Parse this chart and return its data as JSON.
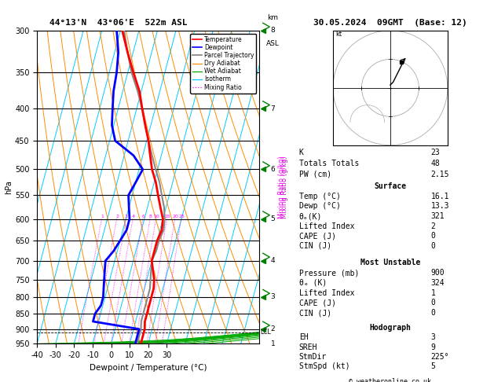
{
  "title_left": "44°13'N  43°06'E  522m ASL",
  "title_right": "30.05.2024  09GMT  (Base: 12)",
  "xlabel": "Dewpoint / Temperature (°C)",
  "ylabel_left": "hPa",
  "pressure_levels": [
    300,
    350,
    400,
    450,
    500,
    550,
    600,
    650,
    700,
    750,
    800,
    850,
    900,
    950
  ],
  "pressure_min": 300,
  "pressure_max": 950,
  "temp_min": -40,
  "temp_max": 35,
  "temp_profile": {
    "pressure": [
      300,
      325,
      350,
      375,
      400,
      425,
      450,
      475,
      500,
      525,
      550,
      575,
      600,
      625,
      650,
      675,
      700,
      725,
      750,
      775,
      800,
      825,
      850,
      875,
      900,
      925,
      950
    ],
    "temp": [
      -39,
      -33,
      -27,
      -21,
      -17,
      -13,
      -9,
      -6,
      -3,
      1,
      4,
      7,
      10,
      11,
      10,
      10,
      10,
      12,
      14,
      15,
      15,
      15,
      15,
      15,
      16,
      16,
      16
    ]
  },
  "dewp_profile": {
    "pressure": [
      300,
      325,
      350,
      375,
      400,
      425,
      450,
      475,
      500,
      525,
      550,
      575,
      600,
      625,
      650,
      675,
      700,
      725,
      750,
      775,
      800,
      825,
      850,
      875,
      900,
      925,
      950
    ],
    "dewp": [
      -42,
      -38,
      -36,
      -35,
      -33,
      -31,
      -27,
      -15,
      -8,
      -10,
      -12,
      -10,
      -8,
      -8,
      -10,
      -12,
      -15,
      -14,
      -13,
      -12,
      -11,
      -11,
      -13,
      -13,
      13,
      13,
      13
    ]
  },
  "parcel_profile": {
    "pressure": [
      300,
      325,
      350,
      375,
      400,
      425,
      450,
      475,
      500,
      525,
      550,
      575,
      600,
      625,
      650,
      675,
      700,
      725,
      750,
      775,
      800,
      825,
      850,
      875,
      900,
      925,
      950
    ],
    "temp": [
      -38,
      -33,
      -28,
      -22,
      -17,
      -13,
      -9,
      -5,
      -1,
      3,
      6,
      9,
      11,
      12,
      11,
      11,
      10,
      11,
      12,
      13,
      13,
      13,
      13,
      13,
      14,
      14,
      14
    ]
  },
  "colors": {
    "temperature": "#ff0000",
    "dewpoint": "#0000ff",
    "parcel": "#888888",
    "dry_adiabat": "#ff8c00",
    "wet_adiabat": "#00aa00",
    "isotherm": "#00ccff",
    "mixing_ratio": "#ff00ff",
    "background": "#ffffff",
    "grid": "#000000"
  },
  "mixing_ratio_lines": [
    1,
    2,
    3,
    4,
    6,
    8,
    10,
    15,
    20,
    25
  ],
  "lcl_pressure": 910,
  "km_pressures": [
    950,
    900,
    800,
    700,
    600,
    500,
    400,
    300
  ],
  "km_values": [
    1,
    2,
    3,
    4,
    5,
    6,
    7,
    8
  ],
  "wind_pressures": [
    300,
    400,
    500,
    600,
    700,
    800,
    900
  ],
  "info_box": {
    "K": 23,
    "Totals_Totals": 48,
    "PW_cm": 2.15,
    "Surface_Temp": 16.1,
    "Surface_Dewp": 13.3,
    "Surface_theta_e": 321,
    "Surface_LI": 2,
    "Surface_CAPE": 0,
    "Surface_CIN": 0,
    "MU_Pressure": 900,
    "MU_theta_e": 324,
    "MU_LI": 1,
    "MU_CAPE": 0,
    "MU_CIN": 0,
    "EH": 3,
    "SREH": 9,
    "StmDir": 225,
    "StmSpd": 5
  }
}
